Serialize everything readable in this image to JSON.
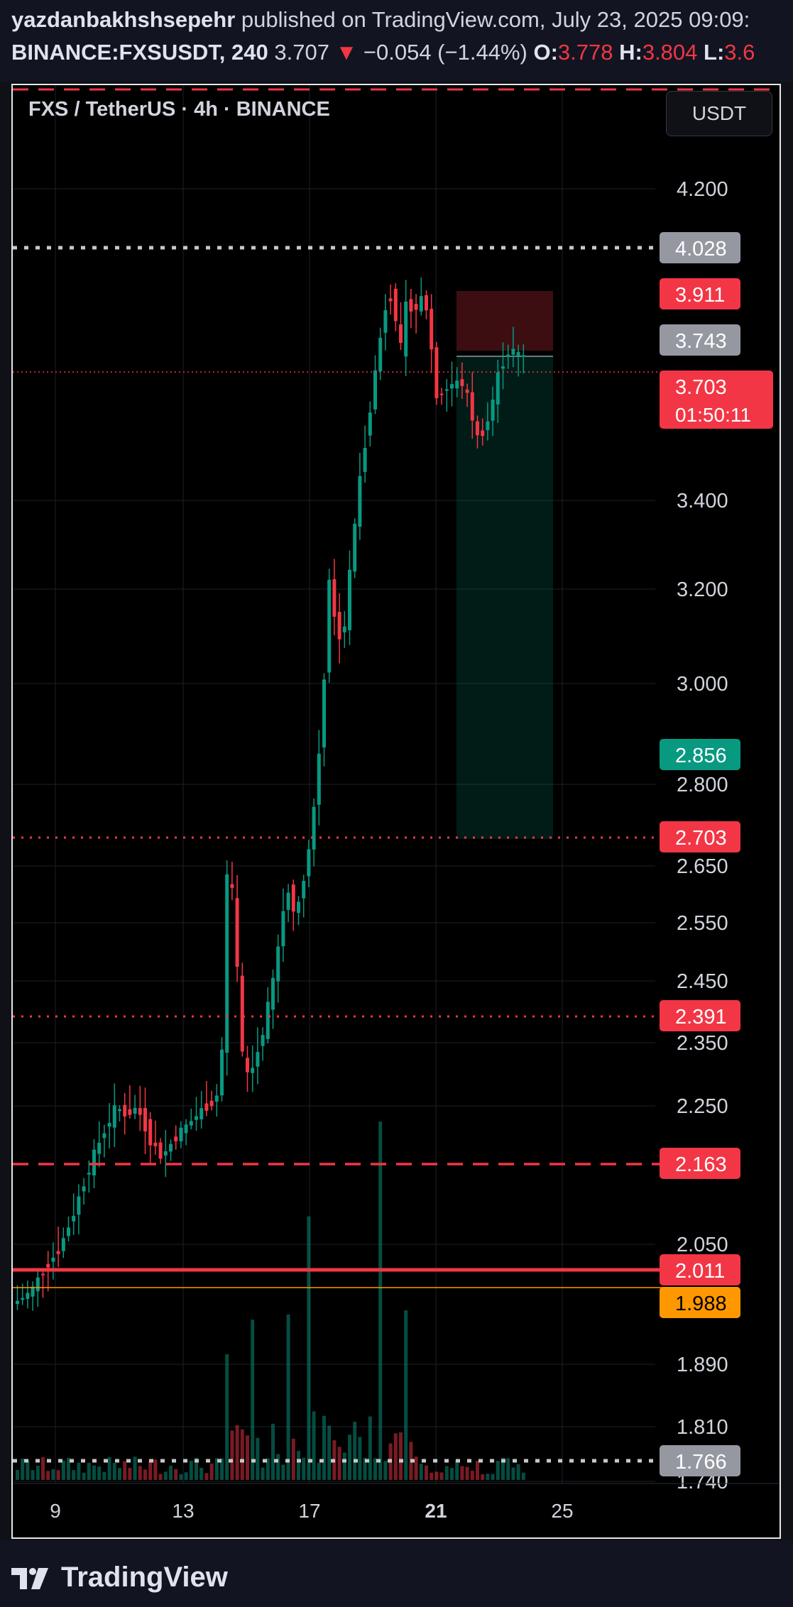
{
  "header": {
    "author": "yazdanbakhshsepehr",
    "published_text": "published on TradingView.com, July 23, 2025 09:09:",
    "symbol": "BINANCE:FXSUSDT, 240",
    "last": "3.707",
    "change_arrow": "▼",
    "change": "−0.054 (−1.44%)",
    "o_label": "O:",
    "o_value": "3.778",
    "h_label": "H:",
    "h_value": "3.804",
    "l_label": "L:",
    "l_value": "3.6"
  },
  "chart": {
    "title": "FXS / TetherUS · 4h · BINANCE",
    "currency": "USDT",
    "y_ticks": [
      "4.200",
      "3.400",
      "3.200",
      "3.000",
      "2.800",
      "2.650",
      "2.550",
      "2.450",
      "2.350",
      "2.250",
      "2.050",
      "1.890",
      "1.810",
      "1.740"
    ],
    "x_ticks": [
      "9",
      "13",
      "17",
      "21",
      "25"
    ],
    "price_tags": [
      {
        "label": "4.028",
        "color": "#9598a1",
        "text_color": "#ffffff"
      },
      {
        "label": "3.911",
        "color": "#f23645",
        "text_color": "#ffffff"
      },
      {
        "label": "3.743",
        "color": "#9598a1",
        "text_color": "#ffffff"
      },
      {
        "label": "3.703",
        "sub": "01:50:11",
        "color": "#f23645",
        "text_color": "#ffffff"
      },
      {
        "label": "2.856",
        "color": "#089981",
        "text_color": "#ffffff"
      },
      {
        "label": "2.703",
        "color": "#f23645",
        "text_color": "#ffffff"
      },
      {
        "label": "2.391",
        "color": "#f23645",
        "text_color": "#ffffff"
      },
      {
        "label": "2.163",
        "color": "#f23645",
        "text_color": "#ffffff"
      },
      {
        "label": "2.011",
        "color": "#f23645",
        "text_color": "#ffffff"
      },
      {
        "label": "1.988",
        "color": "#ff9800",
        "text_color": "#000000"
      },
      {
        "label": "1.766",
        "color": "#9598a1",
        "text_color": "#ffffff"
      }
    ],
    "colors": {
      "up": "#089981",
      "down": "#f23645",
      "grid": "#1c1f27",
      "orange": "#ff9800"
    }
  },
  "footer": {
    "brand": "TradingView"
  }
}
